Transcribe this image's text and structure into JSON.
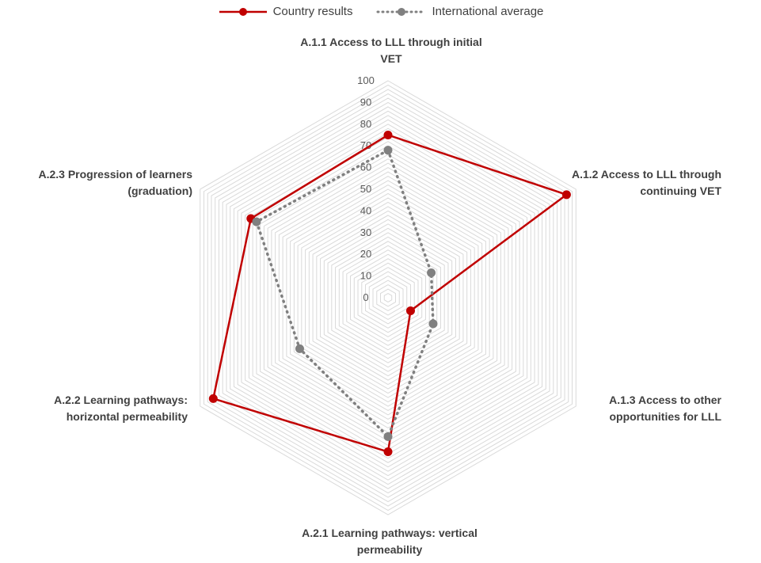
{
  "chart_data": {
    "type": "radar",
    "axes": [
      "A.1.1 Access to LLL through initial VET",
      "A.1.2 Access to LLL through continuing VET",
      "A.1.3 Access to other opportunities for LLL",
      "A.2.1 Learning pathways: vertical permeability",
      "A.2.2 Learning pathways: horizontal permeability",
      "A.2.3 Progression of learners (graduation)"
    ],
    "series": [
      {
        "name": "Country results",
        "values": [
          75,
          95,
          12,
          71,
          93,
          73
        ],
        "color": "#c00000",
        "style": "solid"
      },
      {
        "name": "International average",
        "values": [
          68,
          23,
          24,
          64,
          47,
          70
        ],
        "color": "#808080",
        "style": "dotted"
      }
    ],
    "rlim": [
      0,
      100
    ],
    "ticks": [
      0,
      10,
      20,
      30,
      40,
      50,
      60,
      70,
      80,
      90,
      100
    ],
    "tick_labels": [
      "0",
      "10",
      "20",
      "30",
      "40",
      "50",
      "60",
      "70",
      "80",
      "90",
      "100"
    ],
    "legend_position": "top"
  }
}
